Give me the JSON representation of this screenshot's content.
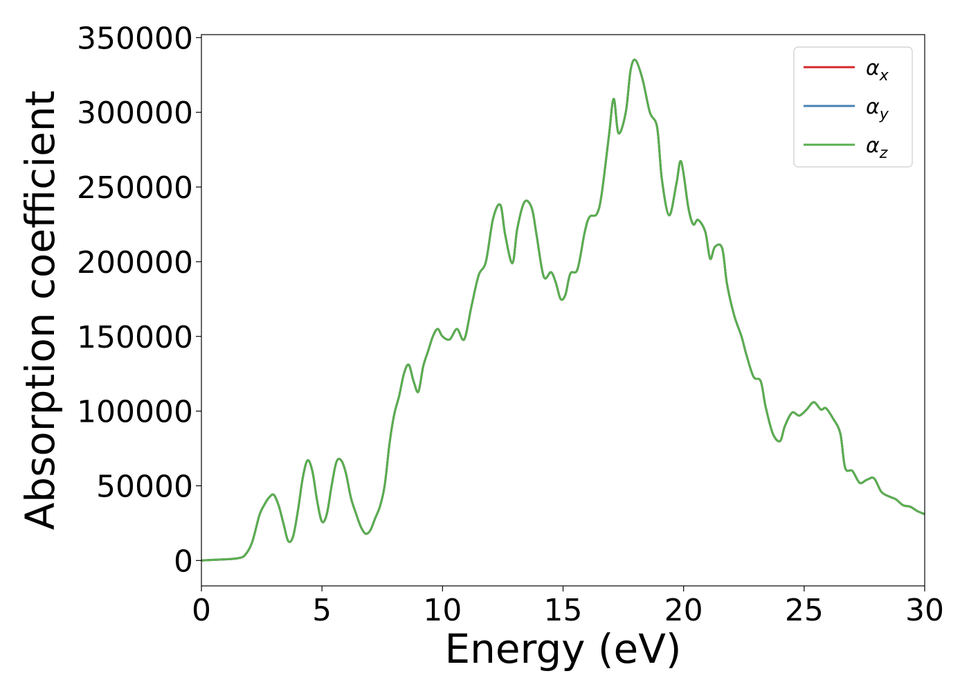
{
  "chart_data": {
    "type": "line",
    "title": "",
    "xlabel": "Energy (eV)",
    "ylabel": "Absorption coefficient",
    "xlim": [
      0,
      30
    ],
    "ylim": [
      -17000,
      352000
    ],
    "xticks": [
      0,
      5,
      10,
      15,
      20,
      25,
      30
    ],
    "xtick_labels": [
      "0",
      "5",
      "10",
      "15",
      "20",
      "25",
      "30"
    ],
    "yticks": [
      0,
      50000,
      100000,
      150000,
      200000,
      250000,
      300000,
      350000
    ],
    "ytick_labels": [
      "0",
      "50000",
      "100000",
      "150000",
      "200000",
      "250000",
      "300000",
      "350000"
    ],
    "grid": false,
    "legend_position": "top-right",
    "x": [
      0,
      1,
      1.5,
      1.8,
      2.1,
      2.4,
      2.6,
      2.8,
      3.0,
      3.2,
      3.4,
      3.6,
      3.8,
      4.0,
      4.2,
      4.4,
      4.6,
      4.8,
      5.0,
      5.2,
      5.4,
      5.6,
      5.8,
      6.0,
      6.2,
      6.4,
      6.6,
      6.8,
      7.0,
      7.2,
      7.4,
      7.6,
      7.8,
      8.0,
      8.2,
      8.4,
      8.6,
      8.8,
      9.0,
      9.2,
      9.4,
      9.6,
      9.8,
      10.0,
      10.3,
      10.6,
      10.9,
      11.2,
      11.5,
      11.8,
      12.1,
      12.4,
      12.6,
      12.9,
      13.1,
      13.4,
      13.7,
      13.9,
      14.2,
      14.5,
      14.7,
      14.9,
      15.1,
      15.3,
      15.6,
      15.9,
      16.1,
      16.4,
      16.6,
      16.9,
      17.1,
      17.3,
      17.6,
      17.8,
      18.0,
      18.3,
      18.6,
      18.9,
      19.1,
      19.4,
      19.7,
      19.9,
      20.2,
      20.4,
      20.6,
      20.9,
      21.1,
      21.3,
      21.6,
      21.8,
      22.1,
      22.4,
      22.6,
      22.9,
      23.2,
      23.4,
      23.7,
      24.0,
      24.2,
      24.5,
      24.8,
      25.1,
      25.4,
      25.7,
      25.9,
      26.2,
      26.5,
      26.7,
      27.0,
      27.3,
      27.6,
      27.9,
      28.2,
      28.5,
      28.8,
      29.1,
      29.4,
      29.7,
      30.0
    ],
    "series": [
      {
        "name": "α_x",
        "color": "#d62728",
        "values": [
          0,
          800,
          1500,
          3500,
          12000,
          30000,
          37000,
          42000,
          44000,
          37000,
          25000,
          13000,
          16000,
          33000,
          55000,
          67000,
          60000,
          40000,
          26000,
          31000,
          50000,
          66000,
          67000,
          58000,
          42000,
          32000,
          23000,
          18000,
          20000,
          28000,
          36000,
          50000,
          78000,
          98000,
          110000,
          125000,
          131000,
          120000,
          113000,
          130000,
          140000,
          150000,
          155000,
          150000,
          148000,
          155000,
          148000,
          170000,
          191000,
          200000,
          229000,
          238000,
          218000,
          199000,
          222000,
          240000,
          236000,
          218000,
          190000,
          193000,
          186000,
          175000,
          178000,
          192000,
          195000,
          220000,
          230000,
          232000,
          245000,
          284000,
          309000,
          286000,
          300000,
          328000,
          335000,
          322000,
          300000,
          290000,
          255000,
          231000,
          252000,
          267000,
          236000,
          225000,
          228000,
          220000,
          202000,
          210000,
          209000,
          185000,
          164000,
          150000,
          138000,
          123000,
          120000,
          103000,
          85000,
          80000,
          90000,
          99000,
          97000,
          101000,
          106000,
          101000,
          102000,
          95000,
          85000,
          62000,
          60000,
          52000,
          54000,
          55000,
          46000,
          43000,
          41000,
          37000,
          36000,
          33000,
          31000
        ]
      },
      {
        "name": "α_y",
        "color": "#4682b4",
        "values": [
          0,
          800,
          1500,
          3500,
          12000,
          30000,
          37000,
          42000,
          44000,
          37000,
          25000,
          13000,
          16000,
          33000,
          55000,
          67000,
          60000,
          40000,
          26000,
          31000,
          50000,
          66000,
          67000,
          58000,
          42000,
          32000,
          23000,
          18000,
          20000,
          28000,
          36000,
          50000,
          78000,
          98000,
          110000,
          125000,
          131000,
          120000,
          113000,
          130000,
          140000,
          150000,
          155000,
          150000,
          148000,
          155000,
          148000,
          170000,
          191000,
          200000,
          229000,
          238000,
          218000,
          199000,
          222000,
          240000,
          236000,
          218000,
          190000,
          193000,
          186000,
          175000,
          178000,
          192000,
          195000,
          220000,
          230000,
          232000,
          245000,
          284000,
          309000,
          286000,
          300000,
          328000,
          335000,
          322000,
          300000,
          290000,
          255000,
          231000,
          252000,
          267000,
          236000,
          225000,
          228000,
          220000,
          202000,
          210000,
          209000,
          185000,
          164000,
          150000,
          138000,
          123000,
          120000,
          103000,
          85000,
          80000,
          90000,
          99000,
          97000,
          101000,
          106000,
          101000,
          102000,
          95000,
          85000,
          62000,
          60000,
          52000,
          54000,
          55000,
          46000,
          43000,
          41000,
          37000,
          36000,
          33000,
          31000
        ]
      },
      {
        "name": "α_z",
        "color": "#5aae4f",
        "values": [
          0,
          800,
          1500,
          3500,
          12000,
          30000,
          37000,
          42000,
          44000,
          37000,
          25000,
          13000,
          16000,
          33000,
          55000,
          67000,
          60000,
          40000,
          26000,
          31000,
          50000,
          66000,
          67000,
          58000,
          42000,
          32000,
          23000,
          18000,
          20000,
          28000,
          36000,
          50000,
          78000,
          98000,
          110000,
          125000,
          131000,
          120000,
          113000,
          130000,
          140000,
          150000,
          155000,
          150000,
          148000,
          155000,
          148000,
          170000,
          191000,
          200000,
          229000,
          238000,
          218000,
          199000,
          222000,
          240000,
          236000,
          218000,
          190000,
          193000,
          186000,
          175000,
          178000,
          192000,
          195000,
          220000,
          230000,
          232000,
          245000,
          284000,
          309000,
          286000,
          300000,
          328000,
          335000,
          322000,
          300000,
          290000,
          255000,
          231000,
          252000,
          267000,
          236000,
          225000,
          228000,
          220000,
          202000,
          210000,
          209000,
          185000,
          164000,
          150000,
          138000,
          123000,
          120000,
          103000,
          85000,
          80000,
          90000,
          99000,
          97000,
          101000,
          106000,
          101000,
          102000,
          95000,
          85000,
          62000,
          60000,
          52000,
          54000,
          55000,
          46000,
          43000,
          41000,
          37000,
          36000,
          33000,
          31000
        ]
      }
    ],
    "legend": [
      {
        "symbol": "α",
        "subscript": "x",
        "color": "#d62728"
      },
      {
        "symbol": "α",
        "subscript": "y",
        "color": "#4682b4"
      },
      {
        "symbol": "α",
        "subscript": "z",
        "color": "#5aae4f"
      }
    ]
  }
}
